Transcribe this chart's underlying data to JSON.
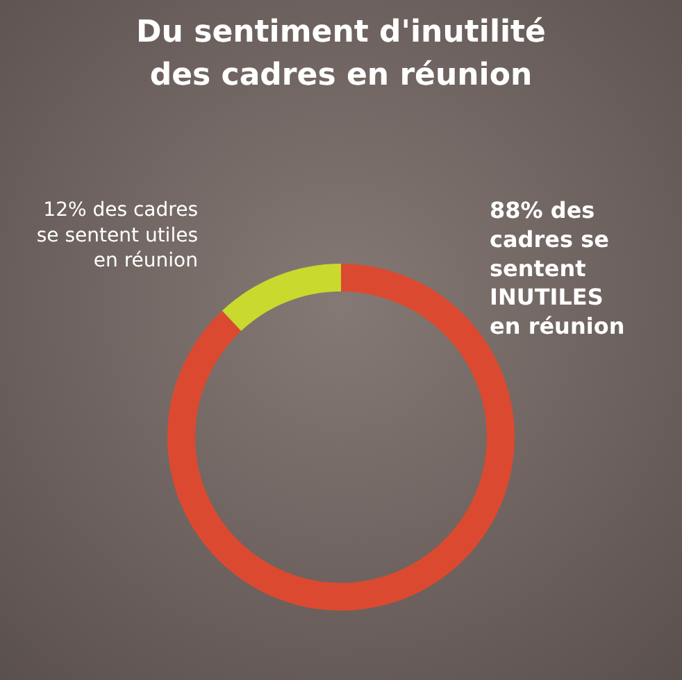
{
  "chart_data": {
    "type": "donut",
    "title": "Du sentiment d'inutilité des cadres en réunion",
    "categories": [
      "des cadres se sentent INUTILES en réunion",
      "des cadres se sentent utiles en réunion"
    ],
    "values": [
      88,
      12
    ],
    "value_labels": [
      "88%",
      "12%"
    ],
    "colors": [
      "#db4a30",
      "#c9d92e"
    ],
    "legend": false
  }
}
